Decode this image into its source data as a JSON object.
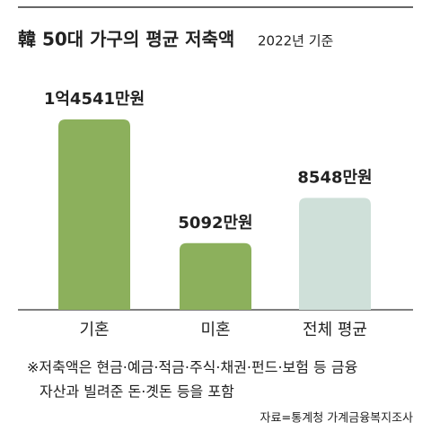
{
  "chart_data": {
    "type": "bar",
    "title": "韓 50대 가구의 평균 저축액",
    "subtitle": "2022년 기준",
    "categories": [
      "기혼",
      "미혼",
      "전체 평균"
    ],
    "values": [
      14541,
      5092,
      8548
    ],
    "value_labels": [
      "1억4541만원",
      "5092만원",
      "8548만원"
    ],
    "colors": [
      "#8cb05c",
      "#8cb05c",
      "#cfe0d9"
    ],
    "notes": [
      "※저축액은 현금·예금·적금·주식·채권·펀드·보험 등 금융",
      "자산과 빌려준 돈·곗돈 등을 포함"
    ],
    "source": "자료=통계청 가계금융복지조사"
  }
}
